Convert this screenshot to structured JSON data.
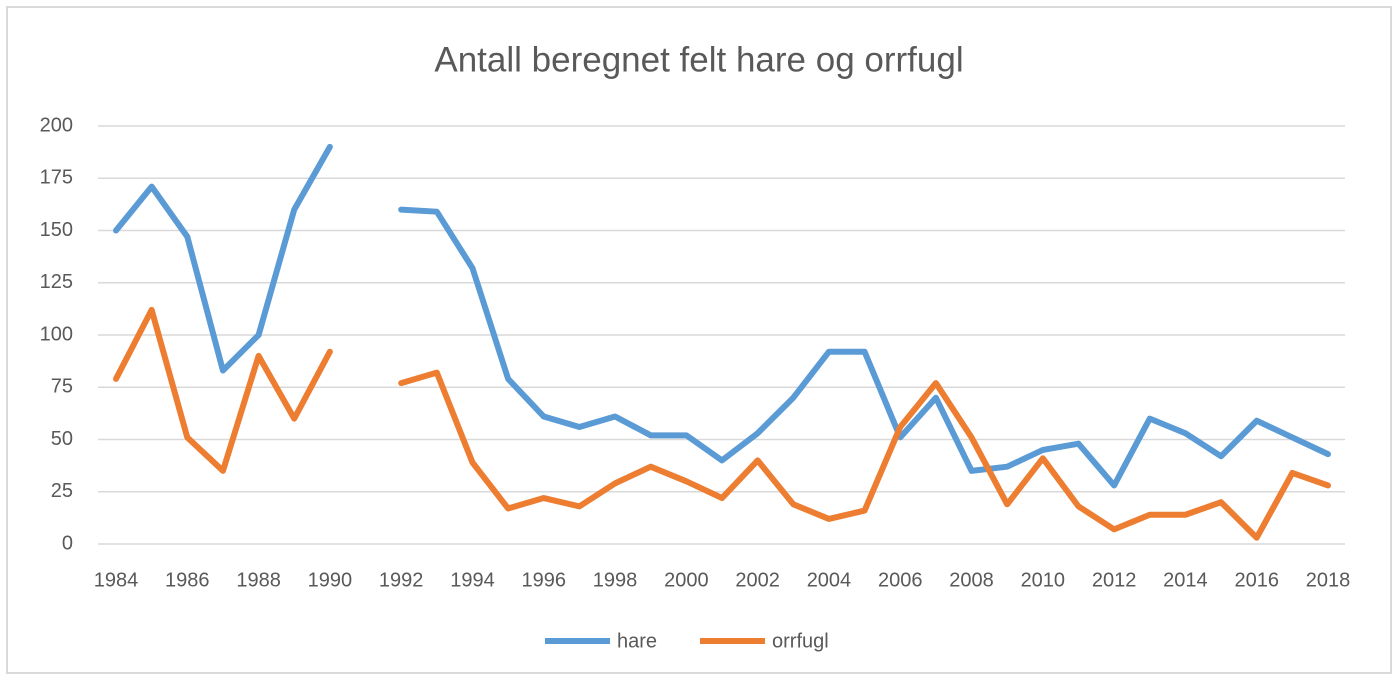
{
  "chart_data": {
    "type": "line",
    "title": "Antall beregnet felt hare og orrfugl",
    "x": [
      1984,
      1985,
      1986,
      1987,
      1988,
      1989,
      1990,
      1991,
      1992,
      1993,
      1994,
      1995,
      1996,
      1997,
      1998,
      1999,
      2000,
      2001,
      2002,
      2003,
      2004,
      2005,
      2006,
      2007,
      2008,
      2009,
      2010,
      2011,
      2012,
      2013,
      2014,
      2015,
      2016,
      2017,
      2018
    ],
    "series": [
      {
        "name": "hare",
        "color": "#5b9bd5",
        "values": [
          150,
          171,
          147,
          83,
          100,
          160,
          190,
          null,
          160,
          159,
          132,
          79,
          61,
          56,
          61,
          52,
          52,
          40,
          53,
          70,
          92,
          92,
          51,
          70,
          35,
          37,
          45,
          48,
          28,
          60,
          53,
          42,
          59,
          51,
          43
        ]
      },
      {
        "name": "orrfugl",
        "color": "#ed7d31",
        "values": [
          79,
          112,
          51,
          35,
          90,
          60,
          92,
          null,
          77,
          82,
          39,
          17,
          22,
          18,
          29,
          37,
          30,
          22,
          40,
          19,
          12,
          16,
          56,
          77,
          51,
          19,
          41,
          18,
          7,
          14,
          14,
          20,
          3,
          34,
          28
        ]
      }
    ],
    "xlim": [
      1984,
      2018
    ],
    "xticks": [
      1984,
      1986,
      1988,
      1990,
      1992,
      1994,
      1996,
      1998,
      2000,
      2002,
      2004,
      2006,
      2008,
      2010,
      2012,
      2014,
      2016,
      2018
    ],
    "ylim": [
      0,
      200
    ],
    "yticks": [
      0,
      25,
      50,
      75,
      100,
      125,
      150,
      175,
      200
    ],
    "grid": true,
    "legend": "bottom"
  }
}
